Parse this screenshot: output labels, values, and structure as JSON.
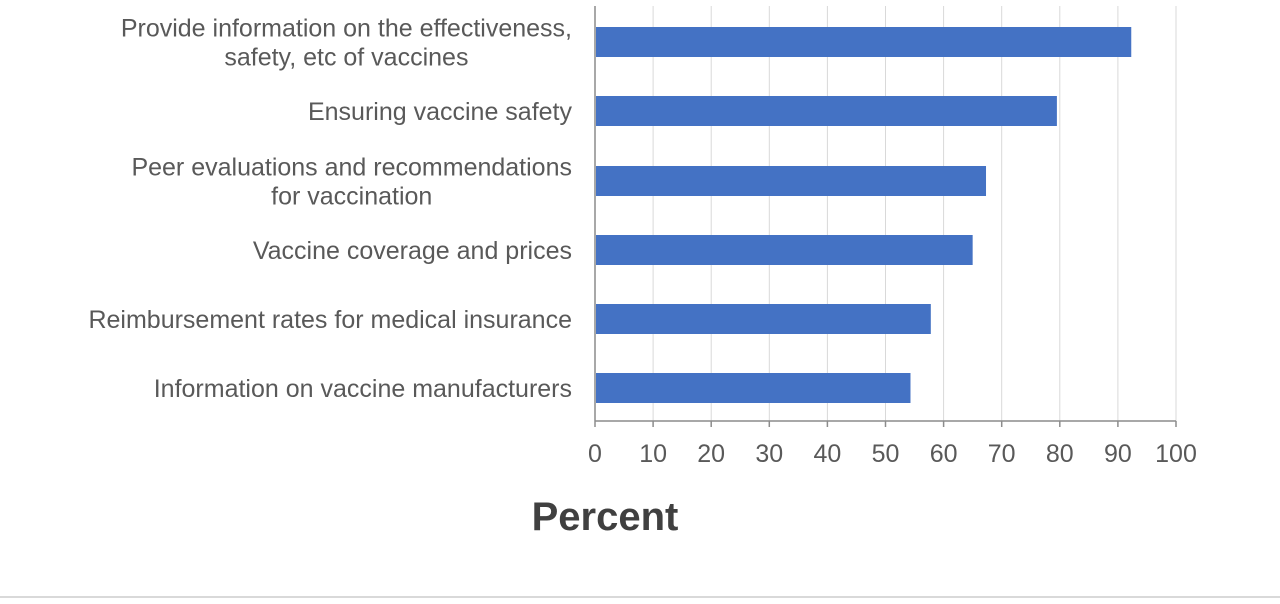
{
  "chart_data": {
    "type": "bar",
    "orientation": "horizontal",
    "categories": [
      [
        "Provide information on the effectiveness,",
        "safety, etc of vaccines"
      ],
      [
        "Ensuring vaccine safety"
      ],
      [
        "Peer evaluations and recommendations",
        "for vaccination"
      ],
      [
        "Vaccine coverage and prices"
      ],
      [
        "Reimbursement rates for medical insurance"
      ],
      [
        "Information on vaccine manufacturers"
      ]
    ],
    "values": [
      92.3,
      79.5,
      67.3,
      65.0,
      57.8,
      54.3
    ],
    "xlabel": "Percent",
    "xlim": [
      0,
      100
    ],
    "xticks": [
      "0",
      "10",
      "20",
      "30",
      "40",
      "50",
      "60",
      "70",
      "80",
      "90",
      "100"
    ],
    "grid": "vertical",
    "bar_color": "#4472C4"
  }
}
